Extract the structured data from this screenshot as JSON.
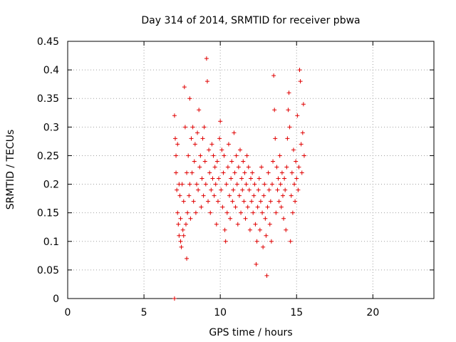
{
  "chart_data": {
    "type": "scatter",
    "title": "Day 314 of 2014, SRMTID for receiver pbwa",
    "xlabel": "GPS time / hours",
    "ylabel": "SRMTID / TECUs",
    "xlim": [
      0,
      24
    ],
    "ylim": [
      0,
      0.45
    ],
    "xticks": [
      "0",
      "5",
      "10",
      "15",
      "20"
    ],
    "yticks": [
      "0",
      "0.05",
      "0.1",
      "0.15",
      "0.2",
      "0.25",
      "0.3",
      "0.35",
      "0.4",
      "0.45"
    ],
    "grid": true,
    "marker": "+",
    "color": "#e00000",
    "series": [
      {
        "x": [
          7.0,
          7.0,
          7.05,
          7.1,
          7.1,
          7.15,
          7.2,
          7.2,
          7.25,
          7.3,
          7.3,
          7.35,
          7.4,
          7.4,
          7.45,
          7.5,
          7.55,
          7.6,
          7.6,
          7.65,
          7.7,
          7.75,
          7.8,
          7.8,
          7.85,
          7.9,
          7.95,
          8.0,
          8.0,
          8.05,
          8.1,
          8.15,
          8.2,
          8.25,
          8.3,
          8.35,
          8.4,
          8.45,
          8.5,
          8.55,
          8.6,
          8.65,
          8.7,
          8.75,
          8.8,
          8.85,
          8.9,
          8.95,
          9.0,
          9.05,
          9.1,
          9.15,
          9.2,
          9.25,
          9.3,
          9.35,
          9.4,
          9.45,
          9.5,
          9.55,
          9.6,
          9.65,
          9.7,
          9.75,
          9.8,
          9.85,
          9.9,
          9.95,
          10.0,
          10.05,
          10.1,
          10.15,
          10.2,
          10.25,
          10.3,
          10.35,
          10.4,
          10.45,
          10.5,
          10.55,
          10.6,
          10.65,
          10.7,
          10.75,
          10.8,
          10.85,
          10.9,
          10.95,
          11.0,
          11.05,
          11.1,
          11.15,
          11.2,
          11.25,
          11.3,
          11.35,
          11.4,
          11.45,
          11.5,
          11.55,
          11.6,
          11.65,
          11.7,
          11.75,
          11.8,
          11.85,
          11.9,
          11.95,
          12.0,
          12.05,
          12.1,
          12.15,
          12.2,
          12.25,
          12.3,
          12.35,
          12.4,
          12.45,
          12.5,
          12.55,
          12.6,
          12.65,
          12.7,
          12.75,
          12.8,
          12.85,
          12.9,
          12.95,
          13.0,
          13.05,
          13.1,
          13.15,
          13.2,
          13.25,
          13.3,
          13.35,
          13.4,
          13.45,
          13.5,
          13.55,
          13.6,
          13.65,
          13.7,
          13.75,
          13.8,
          13.85,
          13.9,
          13.95,
          14.0,
          14.05,
          14.1,
          14.15,
          14.2,
          14.25,
          14.3,
          14.35,
          14.4,
          14.45,
          14.5,
          14.55,
          14.6,
          14.65,
          14.7,
          14.75,
          14.8,
          14.85,
          14.9,
          14.95,
          15.0,
          15.05,
          15.1,
          15.15,
          15.2,
          15.25,
          15.3,
          15.35,
          15.4,
          15.45,
          15.5
        ],
        "y": [
          0.0,
          0.32,
          0.28,
          0.25,
          0.22,
          0.19,
          0.27,
          0.15,
          0.13,
          0.2,
          0.11,
          0.18,
          0.1,
          0.14,
          0.09,
          0.2,
          0.12,
          0.17,
          0.11,
          0.37,
          0.3,
          0.13,
          0.22,
          0.07,
          0.15,
          0.25,
          0.18,
          0.35,
          0.2,
          0.14,
          0.28,
          0.22,
          0.3,
          0.17,
          0.24,
          0.27,
          0.15,
          0.2,
          0.29,
          0.19,
          0.33,
          0.23,
          0.25,
          0.16,
          0.21,
          0.28,
          0.18,
          0.3,
          0.24,
          0.2,
          0.42,
          0.38,
          0.17,
          0.26,
          0.22,
          0.15,
          0.19,
          0.27,
          0.21,
          0.25,
          0.18,
          0.23,
          0.2,
          0.13,
          0.24,
          0.17,
          0.21,
          0.28,
          0.31,
          0.19,
          0.26,
          0.16,
          0.22,
          0.25,
          0.12,
          0.1,
          0.2,
          0.15,
          0.23,
          0.27,
          0.18,
          0.14,
          0.21,
          0.24,
          0.17,
          0.19,
          0.29,
          0.22,
          0.16,
          0.25,
          0.2,
          0.13,
          0.23,
          0.18,
          0.26,
          0.15,
          0.21,
          0.19,
          0.24,
          0.17,
          0.22,
          0.14,
          0.2,
          0.25,
          0.16,
          0.23,
          0.19,
          0.12,
          0.21,
          0.17,
          0.22,
          0.15,
          0.18,
          0.2,
          0.13,
          0.06,
          0.1,
          0.16,
          0.19,
          0.21,
          0.12,
          0.17,
          0.23,
          0.15,
          0.09,
          0.18,
          0.2,
          0.14,
          0.11,
          0.04,
          0.16,
          0.22,
          0.19,
          0.13,
          0.17,
          0.1,
          0.2,
          0.24,
          0.39,
          0.33,
          0.28,
          0.15,
          0.23,
          0.19,
          0.21,
          0.17,
          0.25,
          0.2,
          0.16,
          0.22,
          0.18,
          0.14,
          0.21,
          0.19,
          0.12,
          0.23,
          0.28,
          0.33,
          0.36,
          0.3,
          0.1,
          0.18,
          0.22,
          0.15,
          0.26,
          0.2,
          0.17,
          0.24,
          0.21,
          0.32,
          0.19,
          0.23,
          0.4,
          0.38,
          0.27,
          0.22,
          0.29,
          0.34,
          0.25
        ]
      }
    ]
  }
}
